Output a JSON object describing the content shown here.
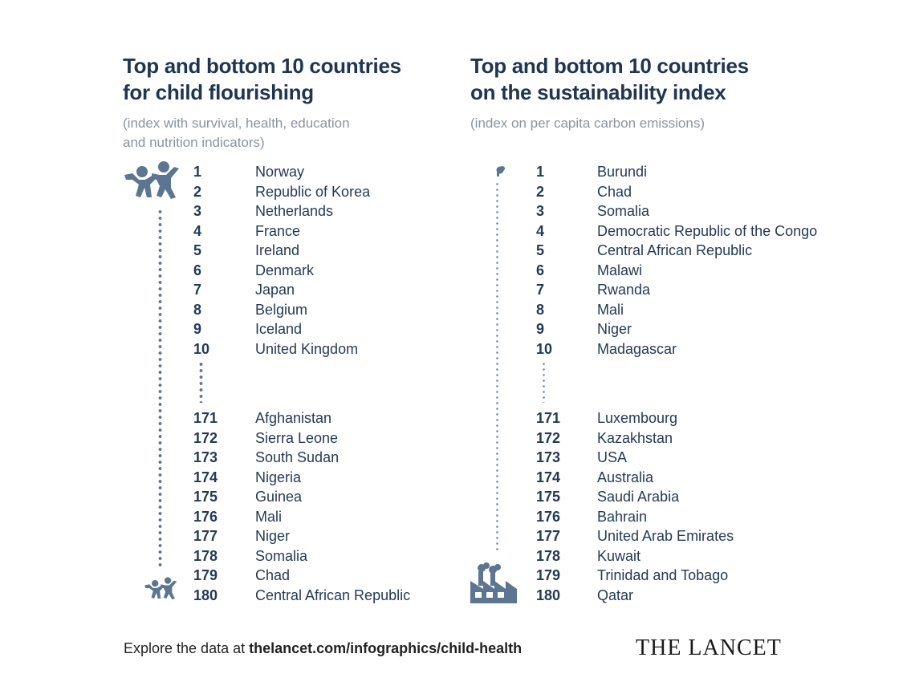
{
  "left": {
    "title_lines": [
      "Top and bottom 10 countries",
      "for child flourishing"
    ],
    "subtitle_lines": [
      "(index with survival, health, education",
      "and nutrition indicators)"
    ],
    "top10": [
      {
        "rank": "1",
        "country": "Norway"
      },
      {
        "rank": "2",
        "country": "Republic of Korea"
      },
      {
        "rank": "3",
        "country": "Netherlands"
      },
      {
        "rank": "4",
        "country": "France"
      },
      {
        "rank": "5",
        "country": "Ireland"
      },
      {
        "rank": "6",
        "country": "Denmark"
      },
      {
        "rank": "7",
        "country": "Japan"
      },
      {
        "rank": "8",
        "country": "Belgium"
      },
      {
        "rank": "9",
        "country": "Iceland"
      },
      {
        "rank": "10",
        "country": "United Kingdom"
      }
    ],
    "bottom10": [
      {
        "rank": "171",
        "country": "Afghanistan"
      },
      {
        "rank": "172",
        "country": "Sierra Leone"
      },
      {
        "rank": "173",
        "country": "South Sudan"
      },
      {
        "rank": "174",
        "country": "Nigeria"
      },
      {
        "rank": "175",
        "country": "Guinea"
      },
      {
        "rank": "176",
        "country": "Mali"
      },
      {
        "rank": "177",
        "country": "Niger"
      },
      {
        "rank": "178",
        "country": "Somalia"
      },
      {
        "rank": "179",
        "country": "Chad"
      },
      {
        "rank": "180",
        "country": "Central African Republic"
      }
    ],
    "icons": [
      "children-large-icon",
      "children-small-icon"
    ]
  },
  "right": {
    "title_lines": [
      "Top and bottom 10 countries",
      "on the sustainability index"
    ],
    "subtitle_lines": [
      "(index on per capita carbon emissions)"
    ],
    "top10": [
      {
        "rank": "1",
        "country": "Burundi"
      },
      {
        "rank": "2",
        "country": "Chad"
      },
      {
        "rank": "3",
        "country": "Somalia"
      },
      {
        "rank": "4",
        "country": "Democratic Republic of the Congo"
      },
      {
        "rank": "5",
        "country": "Central African Republic"
      },
      {
        "rank": "6",
        "country": "Malawi"
      },
      {
        "rank": "7",
        "country": "Rwanda"
      },
      {
        "rank": "8",
        "country": "Mali"
      },
      {
        "rank": "9",
        "country": "Niger"
      },
      {
        "rank": "10",
        "country": "Madagascar"
      }
    ],
    "bottom10": [
      {
        "rank": "171",
        "country": "Luxembourg"
      },
      {
        "rank": "172",
        "country": "Kazakhstan"
      },
      {
        "rank": "173",
        "country": "USA"
      },
      {
        "rank": "174",
        "country": "Australia"
      },
      {
        "rank": "175",
        "country": "Saudi Arabia"
      },
      {
        "rank": "176",
        "country": "Bahrain"
      },
      {
        "rank": "177",
        "country": "United Arab Emirates"
      },
      {
        "rank": "178",
        "country": "Kuwait"
      },
      {
        "rank": "179",
        "country": "Trinidad and Tobago"
      },
      {
        "rank": "180",
        "country": "Qatar"
      }
    ],
    "icons": [
      "small-smoke-icon",
      "factory-icon"
    ]
  },
  "footer": {
    "prefix": "Explore the data at ",
    "link": "thelancet.com/infographics/child-health",
    "logo": "THE LANCET"
  },
  "colors": {
    "heading": "#1f3550",
    "subtitle": "#8a94a0",
    "icon": "#5c7590"
  }
}
